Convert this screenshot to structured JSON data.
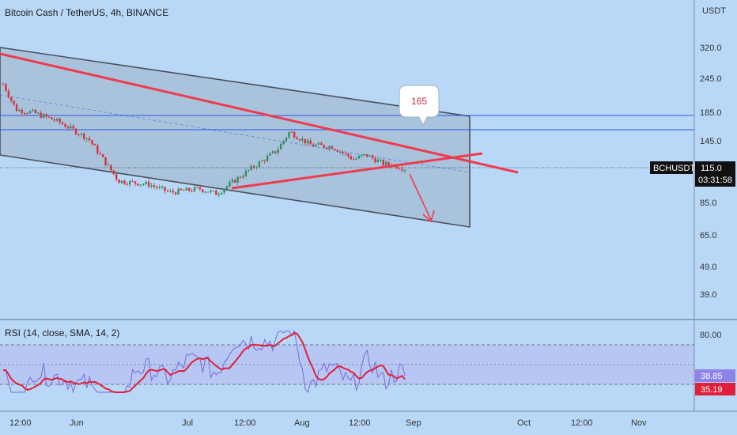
{
  "header": {
    "title": "Bitcoin Cash / TetherUS, 4h, BINANCE",
    "currency": "USDT"
  },
  "rsi": {
    "title": "RSI (14, close, SMA, 14, 2)",
    "levels": [
      70,
      50,
      30
    ],
    "ticks": [
      "80.00"
    ],
    "last_rsi": "38.85",
    "last_sma": "35.19"
  },
  "price_axis": {
    "ticks": [
      "320.0",
      "245.0",
      "185.0",
      "145.0",
      "115.0",
      "85.0",
      "65.0",
      "49.0",
      "39.0"
    ],
    "symbol_tag": "BCHUSDT",
    "last_price": "115.0",
    "countdown": "03:31:58"
  },
  "time_axis": {
    "ticks": [
      "12:00",
      "Jun",
      "Jul",
      "12:00",
      "Aug",
      "12:00",
      "Sep",
      "Oct",
      "12:00",
      "Nov"
    ]
  },
  "annotation": {
    "callout": "165"
  },
  "colors": {
    "background": "#b9d8f7",
    "trendline": "#ef3b4e",
    "channel_fill": "#a6bcd4",
    "channel_border": "#4a4f5a",
    "horizontal_lines": "#2a55e6",
    "candle_up": "#2f8f5f",
    "candle_down": "#d8303a",
    "rsi_line": "#7b68d9",
    "rsi_sma": "#e0203a"
  },
  "chart_data": {
    "type": "candlestick",
    "title": "Bitcoin Cash / TetherUS, 4h, BINANCE",
    "ylabel": "USDT",
    "y_scale": "log",
    "ylim": [
      32,
      400
    ],
    "ticks": [
      320,
      245,
      185,
      145,
      115,
      85,
      65,
      49,
      39
    ],
    "last_price": 115.0,
    "horizontal_levels": [
      185,
      165
    ],
    "target_callout": 165,
    "price_path": [
      {
        "x": "2021-05-25",
        "y": 245
      },
      {
        "x": "2021-05-28",
        "y": 195
      },
      {
        "x": "2021-06-01",
        "y": 190
      },
      {
        "x": "2021-06-07",
        "y": 175
      },
      {
        "x": "2021-06-14",
        "y": 150
      },
      {
        "x": "2021-06-21",
        "y": 103
      },
      {
        "x": "2021-06-28",
        "y": 100
      },
      {
        "x": "2021-07-03",
        "y": 93
      },
      {
        "x": "2021-07-10",
        "y": 96
      },
      {
        "x": "2021-07-14",
        "y": 92
      },
      {
        "x": "2021-07-21",
        "y": 112
      },
      {
        "x": "2021-07-28",
        "y": 135
      },
      {
        "x": "2021-07-31",
        "y": 160
      },
      {
        "x": "2021-08-05",
        "y": 142
      },
      {
        "x": "2021-08-10",
        "y": 140
      },
      {
        "x": "2021-08-15",
        "y": 125
      },
      {
        "x": "2021-08-18",
        "y": 130
      },
      {
        "x": "2021-08-22",
        "y": 120
      },
      {
        "x": "2021-08-25",
        "y": 118
      },
      {
        "x": "2021-08-27",
        "y": 115
      }
    ],
    "rsi": {
      "last": 38.85,
      "sma_last": 35.19,
      "bands": [
        70,
        50,
        30
      ],
      "ylim": [
        20,
        90
      ]
    }
  }
}
